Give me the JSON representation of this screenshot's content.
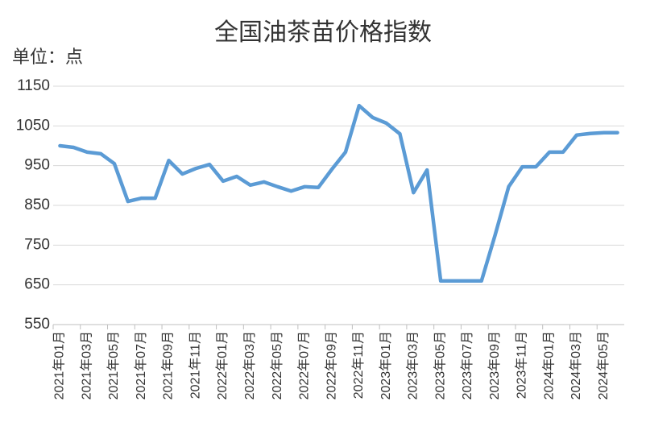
{
  "chart_data": {
    "type": "line",
    "title": "全国油茶苗价格指数",
    "unit_label": "单位：点",
    "categories": [
      "2021年01月",
      null,
      "2021年03月",
      null,
      "2021年05月",
      null,
      "2021年07月",
      null,
      "2021年09月",
      null,
      "2021年11月",
      null,
      "2022年01月",
      null,
      "2022年03月",
      null,
      "2022年05月",
      null,
      "2022年07月",
      null,
      "2022年09月",
      null,
      "2022年11月",
      null,
      "2023年01月",
      null,
      "2023年03月",
      null,
      "2023年05月",
      null,
      "2023年07月",
      null,
      "2023年09月",
      null,
      "2023年11月",
      null,
      "2024年01月",
      null,
      "2024年03月",
      null,
      "2024年05月",
      null
    ],
    "series": [
      {
        "name": "全国油茶苗价格指数",
        "color": "#5b9bd5",
        "values": [
          1000,
          996,
          984,
          980,
          955,
          860,
          868,
          868,
          963,
          929,
          943,
          953,
          911,
          923,
          901,
          909,
          897,
          886,
          897,
          895,
          941,
          984,
          1101,
          1071,
          1057,
          1030,
          882,
          939,
          660,
          660,
          660,
          660,
          775,
          897,
          947,
          947,
          984,
          984,
          1027,
          1031,
          1033,
          1033
        ]
      }
    ],
    "ylim": [
      550,
      1150
    ],
    "yticks": [
      550,
      650,
      750,
      850,
      950,
      1050,
      1150
    ],
    "grid": true
  }
}
